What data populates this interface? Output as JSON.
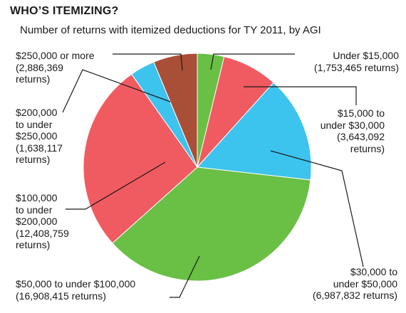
{
  "chart_data": {
    "type": "pie",
    "title": "WHO’S ITEMIZING?",
    "subtitle": "Number of returns with itemized deductions for TY 2011, by AGI",
    "slices": [
      {
        "category": "Under $15,000",
        "value": 1753465,
        "color": "#6abf45",
        "label_lines": [
          "Under $15,000",
          "(1,753,465 returns)"
        ]
      },
      {
        "category": "$15,000 to under $30,000",
        "value": 3643092,
        "color": "#f05b61",
        "label_lines": [
          "$15,000 to",
          "under $30,000",
          "(3,643,092",
          "returns)"
        ]
      },
      {
        "category": "$30,000 to under $50,000",
        "value": 6987832,
        "color": "#3cc3ee",
        "label_lines": [
          "$30,000 to",
          "under $50,000",
          "(6,987,832 returns)"
        ]
      },
      {
        "category": "$50,000 to under $100,000",
        "value": 16908415,
        "color": "#6abf45",
        "label_lines": [
          "$50,000 to under $100,000",
          "(16,908,415 returns)"
        ]
      },
      {
        "category": "$100,000 to under $200,000",
        "value": 12408759,
        "color": "#f05b61",
        "label_lines": [
          "$100,000",
          "to under",
          "$200,000",
          "(12,408,759",
          "returns)"
        ]
      },
      {
        "category": "$200,000 to under $250,000",
        "value": 1638117,
        "color": "#3cc3ee",
        "label_lines": [
          "$200,000",
          "to under",
          "$250,000",
          "(1,638,117",
          "returns)"
        ]
      },
      {
        "category": "$250,000 or more",
        "value": 2886369,
        "color": "#a94f38",
        "label_lines": [
          "$250,000 or more",
          "(2,886,369",
          "returns)"
        ]
      }
    ]
  }
}
